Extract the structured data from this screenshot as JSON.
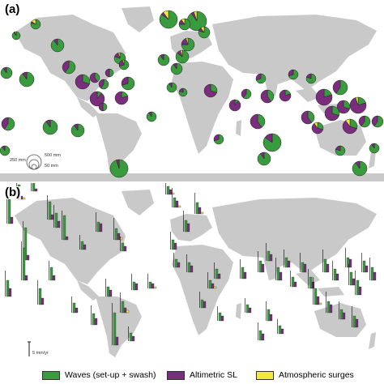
{
  "colors": {
    "waves": "#3a9a3e",
    "altimetric": "#7b2d7d",
    "surges": "#f2ea3a",
    "land": "#c9c9c9"
  },
  "panel_a": {
    "label": "(a)",
    "scale": {
      "large": "500 mm",
      "medium": "250 mm",
      "small": "50 mm"
    }
  },
  "panel_b": {
    "label": "(b)",
    "scale": {
      "label": "5 mm/yr"
    }
  },
  "legend": [
    {
      "name": "waves",
      "label": "Waves (set-up + swash)",
      "color": "#3a9a3e"
    },
    {
      "name": "altimetric",
      "label": "Altimetric SL",
      "color": "#7b2d7d"
    },
    {
      "name": "surges",
      "label": "Atmospheric surges",
      "color": "#f2ea3a"
    }
  ]
}
